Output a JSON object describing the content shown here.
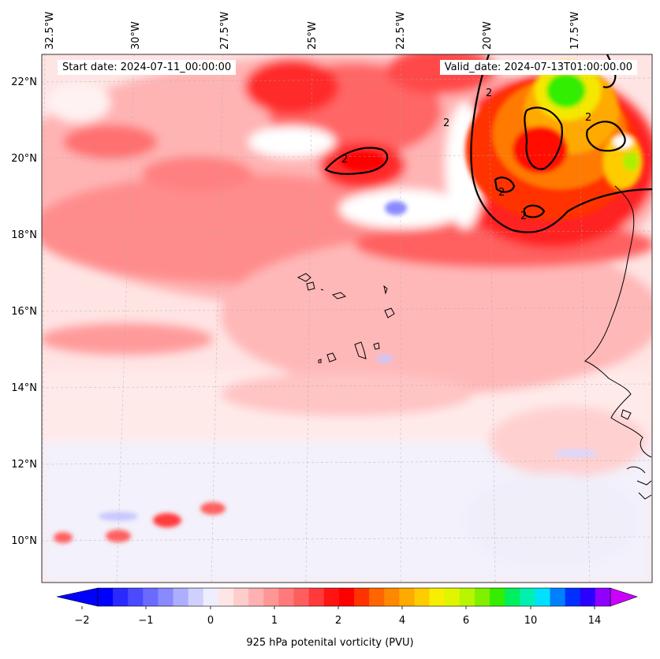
{
  "map": {
    "lat_labels": [
      "22°N",
      "20°N",
      "18°N",
      "16°N",
      "14°N",
      "12°N",
      "10°N"
    ],
    "lon_labels": [
      "32.5°W",
      "30°W",
      "27.5°W",
      "25°W",
      "22.5°W",
      "20°W",
      "17.5°W"
    ],
    "start_date": "Start date: 2024-07-11_00:00:00",
    "valid_date": "Valid_date: 2024-07-13T01:00:00.00",
    "contour_label": "2",
    "colors": {
      "neg_deep": "#1a1aff",
      "neg_light": "#eef0ff",
      "pos_light": "#ffe4e4",
      "pos_mid": "#ffb0b0",
      "pos_strong": "#ff4040",
      "orange": "#ff7a00",
      "yellow": "#f5e800",
      "green": "#33ee00",
      "coast": "#000000",
      "contour": "#000000"
    }
  },
  "colorbar": {
    "title": "925 hPa potenital vorticity (PVU)",
    "tick_labels": [
      "−2",
      "−1",
      "0",
      "1",
      "2",
      "4",
      "6",
      "10",
      "14"
    ],
    "colors": [
      "#0000ff",
      "#2a2aff",
      "#4a4aff",
      "#6a6aff",
      "#8a8aff",
      "#aeaeff",
      "#d0d0ff",
      "#eeeeff",
      "#ffe6e6",
      "#ffcccc",
      "#ffb0b0",
      "#ff9696",
      "#ff7a7a",
      "#ff5e5e",
      "#ff3a3a",
      "#ff1414",
      "#ff0000",
      "#ff3300",
      "#ff6600",
      "#ff8800",
      "#ffaa00",
      "#ffcc00",
      "#f7ee00",
      "#e0f500",
      "#b8f500",
      "#80f000",
      "#33ee00",
      "#00ef60",
      "#00f0b0",
      "#00e0ff",
      "#0080ff",
      "#0030ff",
      "#2a00ff",
      "#9000ff"
    ],
    "extend_min_color": "#0000ff",
    "extend_max_color": "#cc00ff"
  }
}
